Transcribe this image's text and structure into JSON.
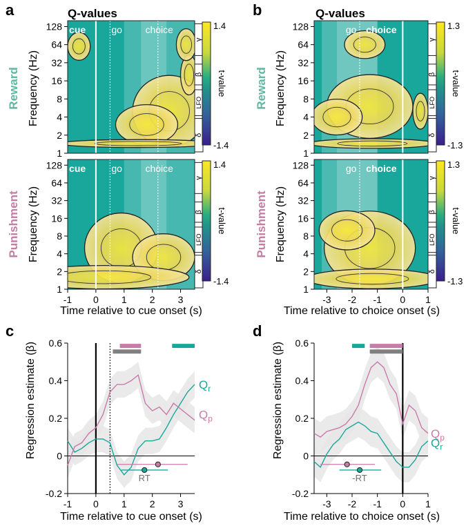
{
  "colors": {
    "teal": "#1aa79b",
    "tealText": "#5db8a2",
    "pink": "#c97aa8",
    "pinkText": "#c37ea6",
    "gray": "#808080",
    "band": "#e6e6e6"
  },
  "labels": {
    "panel_a": "a",
    "panel_b": "b",
    "panel_c": "c",
    "panel_d": "d",
    "qvalues": "Q-values",
    "reward": "Reward",
    "punishment": "Punishment"
  },
  "chart_data": [
    {
      "panel": "a",
      "type": "heatmap",
      "title": "Q-values",
      "xlabel": "Time relative to cue onset (s)",
      "ylabel": "Frequency (Hz)",
      "xlim": [
        -1,
        3.5
      ],
      "xticks": [
        "-1",
        "0",
        "1",
        "2",
        "3"
      ],
      "yticks": [
        "1",
        "2",
        "4",
        "8",
        "16",
        "32",
        "64",
        "128"
      ],
      "colorbar": {
        "label": "t-value",
        "max": "1.4",
        "min": "-1.4",
        "bands": [
          "γ",
          "β",
          "LFO",
          "δ"
        ]
      },
      "rows": [
        {
          "row_label": "Reward",
          "events": [
            {
              "label": "cue",
              "bold": true
            },
            {
              "label": "go",
              "bold": false
            },
            {
              "label": "choice",
              "bold": false
            }
          ]
        },
        {
          "row_label": "Punishment",
          "events": [
            {
              "label": "cue",
              "bold": true
            },
            {
              "label": "go",
              "bold": false
            },
            {
              "label": "choice",
              "bold": false
            }
          ]
        }
      ]
    },
    {
      "panel": "b",
      "type": "heatmap",
      "title": "Q-values",
      "xlabel": "Time relative to choice onset (s)",
      "ylabel": "Frequency (Hz)",
      "xlim": [
        -3.5,
        1
      ],
      "xticks": [
        "-3",
        "-2",
        "-1",
        "0",
        "1"
      ],
      "yticks": [
        "1",
        "2",
        "4",
        "8",
        "16",
        "32",
        "64",
        "128"
      ],
      "colorbar": {
        "label": "t-value",
        "max": "1.3",
        "min": "-1.3",
        "bands": [
          "γ",
          "β",
          "LFO",
          "δ"
        ]
      },
      "rows": [
        {
          "row_label": "Reward",
          "events": [
            {
              "label": "go",
              "bold": false
            },
            {
              "label": "choice",
              "bold": true
            }
          ]
        },
        {
          "row_label": "Punishment",
          "events": [
            {
              "label": "go",
              "bold": false
            },
            {
              "label": "choice",
              "bold": true
            }
          ]
        }
      ]
    },
    {
      "panel": "c",
      "type": "line",
      "xlabel": "Time relative to cue onset (s)",
      "ylabel": "Regression estimate (β)",
      "xlim": [
        -1,
        3.5
      ],
      "ylim": [
        -0.2,
        0.6
      ],
      "xticks": [
        "-1",
        "0",
        "1",
        "2",
        "3"
      ],
      "yticks": [
        "-0.2",
        "0",
        "0.2",
        "0.4",
        "0.6"
      ],
      "rt_label": "RT",
      "series": [
        {
          "name": "Qr",
          "main": "Q",
          "sub": "r",
          "color": "#1aa79b",
          "x": [
            -1,
            -0.75,
            -0.5,
            -0.25,
            0,
            0.25,
            0.5,
            0.6,
            0.75,
            1,
            1.25,
            1.5,
            1.75,
            2,
            2.25,
            2.5,
            2.75,
            3,
            3.25,
            3.5
          ],
          "y": [
            0.08,
            0.02,
            0.04,
            0.07,
            0.09,
            0.09,
            0.07,
            0.02,
            -0.05,
            -0.1,
            -0.06,
            0.04,
            0.08,
            0.08,
            0.09,
            0.15,
            0.22,
            0.28,
            0.34,
            0.38
          ],
          "sem": [
            0.07,
            0.07,
            0.07,
            0.07,
            0.07,
            0.07,
            0.07,
            0.07,
            0.07,
            0.07,
            0.07,
            0.07,
            0.07,
            0.07,
            0.07,
            0.07,
            0.07,
            0.07,
            0.07,
            0.07
          ],
          "label_at": 0.38
        },
        {
          "name": "Qp",
          "main": "Q",
          "sub": "p",
          "color": "#c97aa8",
          "x": [
            -1,
            -0.75,
            -0.5,
            -0.25,
            0,
            0.25,
            0.5,
            0.75,
            1,
            1.25,
            1.5,
            1.75,
            2,
            2.25,
            2.5,
            2.75,
            3,
            3.25,
            3.5
          ],
          "y": [
            -0.05,
            0.05,
            0.07,
            0.12,
            0.15,
            0.22,
            0.34,
            0.38,
            0.38,
            0.4,
            0.43,
            0.28,
            0.24,
            0.26,
            0.22,
            0.28,
            0.25,
            0.22,
            0.19
          ],
          "sem": [
            0.07,
            0.07,
            0.07,
            0.07,
            0.07,
            0.07,
            0.07,
            0.07,
            0.07,
            0.07,
            0.07,
            0.07,
            0.07,
            0.07,
            0.07,
            0.07,
            0.07,
            0.07,
            0.07
          ],
          "label_at": 0.22
        }
      ],
      "sig_bars": [
        {
          "series": "Qp",
          "color": "#c97aa8",
          "start": 0.85,
          "end": 1.6,
          "level": 0.585
        },
        {
          "series": "Qr",
          "color": "#1aa79b",
          "start": 2.7,
          "end": 3.5,
          "level": 0.585
        },
        {
          "series": "both",
          "color": "#808080",
          "start": 0.6,
          "end": 1.6,
          "level": 0.555
        }
      ],
      "rt": [
        {
          "series": "Qp",
          "color": "#c97aa8",
          "mean": 2.2,
          "low": 0.75,
          "high": 3.25,
          "level": -0.045
        },
        {
          "series": "Qr",
          "color": "#1aa79b",
          "mean": 1.72,
          "low": 0.9,
          "high": 2.55,
          "level": -0.075
        }
      ],
      "event_lines": [
        {
          "x": 0,
          "style": "solid"
        },
        {
          "x": 0.5,
          "style": "dotted"
        }
      ]
    },
    {
      "panel": "d",
      "type": "line",
      "xlabel": "Time relative to choice onset (s)",
      "ylabel": "Regression estimate (β)",
      "xlim": [
        -3.5,
        1
      ],
      "ylim": [
        -0.2,
        0.6
      ],
      "xticks": [
        "-3",
        "-2",
        "-1",
        "0",
        "1"
      ],
      "yticks": [
        "-0.2",
        "0",
        "0.2",
        "0.4",
        "0.6"
      ],
      "rt_label": "-RT",
      "series": [
        {
          "name": "Qp",
          "main": "Q",
          "sub": "p",
          "color": "#c97aa8",
          "x": [
            -3.5,
            -3.25,
            -3,
            -2.75,
            -2.5,
            -2.25,
            -2,
            -1.75,
            -1.5,
            -1.25,
            -1,
            -0.75,
            -0.5,
            -0.25,
            0,
            0.25,
            0.5,
            0.75,
            1
          ],
          "y": [
            0.12,
            0.1,
            0.13,
            0.14,
            0.15,
            0.17,
            0.21,
            0.27,
            0.38,
            0.47,
            0.5,
            0.47,
            0.38,
            0.33,
            0.17,
            0.27,
            0.24,
            0.15,
            0.12
          ],
          "sem": [
            0.08,
            0.08,
            0.08,
            0.08,
            0.08,
            0.08,
            0.08,
            0.08,
            0.08,
            0.08,
            0.08,
            0.08,
            0.08,
            0.08,
            0.08,
            0.08,
            0.08,
            0.08,
            0.08
          ],
          "label_at": 0.12
        },
        {
          "name": "Qr",
          "main": "Q",
          "sub": "r",
          "color": "#1aa79b",
          "x": [
            -3.5,
            -3.25,
            -3,
            -2.75,
            -2.5,
            -2.25,
            -2,
            -1.75,
            -1.5,
            -1.25,
            -1,
            -0.75,
            -0.5,
            -0.25,
            0,
            0.25,
            0.5,
            0.75,
            1
          ],
          "y": [
            -0.03,
            -0.06,
            0.01,
            0.06,
            0.09,
            0.14,
            0.16,
            0.18,
            0.16,
            0.13,
            0.12,
            0.07,
            0.02,
            -0.03,
            -0.06,
            -0.06,
            -0.02,
            0.05,
            0.08
          ],
          "sem": [
            0.08,
            0.08,
            0.08,
            0.08,
            0.08,
            0.08,
            0.08,
            0.08,
            0.08,
            0.08,
            0.08,
            0.08,
            0.08,
            0.08,
            0.08,
            0.08,
            0.08,
            0.08,
            0.08
          ],
          "label_at": 0.07
        }
      ],
      "sig_bars": [
        {
          "series": "Qr",
          "color": "#1aa79b",
          "start": -2.0,
          "end": -1.5,
          "level": 0.585
        },
        {
          "series": "Qp",
          "color": "#c97aa8",
          "start": -1.3,
          "end": 0,
          "level": 0.585
        },
        {
          "series": "both",
          "color": "#808080",
          "start": -1.3,
          "end": 0,
          "level": 0.555
        }
      ],
      "rt": [
        {
          "series": "Qp",
          "color": "#c97aa8",
          "mean": -2.2,
          "low": -3.25,
          "high": -1.1,
          "level": -0.045
        },
        {
          "series": "Qr",
          "color": "#1aa79b",
          "mean": -1.7,
          "low": -2.5,
          "high": -0.85,
          "level": -0.075
        }
      ],
      "event_lines": [
        {
          "x": 0,
          "style": "solid"
        }
      ]
    }
  ]
}
